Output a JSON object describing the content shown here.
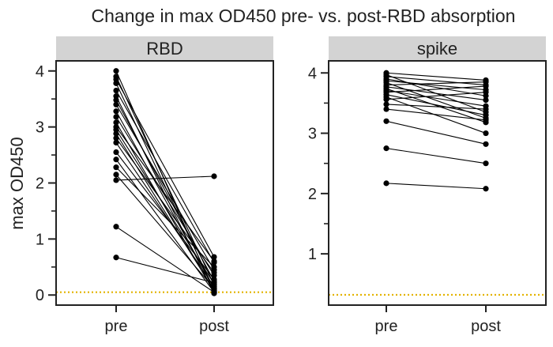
{
  "figure": {
    "title": "Change in max OD450 pre- vs. post-RBD absorption",
    "ylabel": "max OD450"
  },
  "colors": {
    "line": "#000000",
    "marker": "#000000",
    "threshold": "#e3b300",
    "strip_bg": "#d3d3d3",
    "axis": "#222222"
  },
  "chart_data": [
    {
      "type": "line",
      "panel": "RBD",
      "categories": [
        "pre",
        "post"
      ],
      "ylim": [
        -0.18,
        4.18
      ],
      "yticks_major": [
        0,
        1,
        2,
        3,
        4
      ],
      "yticks_minor": [
        0.5,
        1.5,
        2.5,
        3.5
      ],
      "threshold": 0.05,
      "pairs": [
        [
          4.0,
          0.05
        ],
        [
          3.9,
          0.18
        ],
        [
          3.85,
          0.68
        ],
        [
          3.78,
          0.1
        ],
        [
          3.65,
          0.58
        ],
        [
          3.55,
          0.03
        ],
        [
          3.48,
          0.25
        ],
        [
          3.4,
          0.45
        ],
        [
          3.28,
          0.12
        ],
        [
          3.18,
          0.35
        ],
        [
          3.08,
          0.05
        ],
        [
          3.0,
          0.6
        ],
        [
          2.95,
          0.2
        ],
        [
          2.88,
          0.08
        ],
        [
          2.8,
          0.4
        ],
        [
          2.72,
          0.15
        ],
        [
          2.55,
          0.28
        ],
        [
          2.42,
          0.05
        ],
        [
          2.28,
          0.5
        ],
        [
          2.15,
          0.12
        ],
        [
          2.05,
          2.12
        ],
        [
          1.22,
          0.05
        ],
        [
          0.67,
          0.22
        ]
      ]
    },
    {
      "type": "line",
      "panel": "spike",
      "categories": [
        "pre",
        "post"
      ],
      "ylim": [
        0.15,
        4.2
      ],
      "yticks_major": [
        1,
        2,
        3,
        4
      ],
      "yticks_minor": [
        1.5,
        2.5,
        3.5
      ],
      "threshold": 0.32,
      "pairs": [
        [
          4.0,
          3.88
        ],
        [
          3.97,
          3.35
        ],
        [
          3.94,
          3.8
        ],
        [
          3.9,
          3.62
        ],
        [
          3.87,
          3.72
        ],
        [
          3.84,
          3.25
        ],
        [
          3.8,
          3.85
        ],
        [
          3.77,
          3.55
        ],
        [
          3.74,
          3.18
        ],
        [
          3.71,
          3.45
        ],
        [
          3.68,
          3.78
        ],
        [
          3.64,
          3.3
        ],
        [
          3.6,
          3.0
        ],
        [
          3.56,
          3.68
        ],
        [
          3.48,
          3.4
        ],
        [
          3.4,
          3.22
        ],
        [
          3.2,
          2.82
        ],
        [
          2.75,
          2.5
        ],
        [
          2.17,
          2.08
        ]
      ]
    }
  ]
}
